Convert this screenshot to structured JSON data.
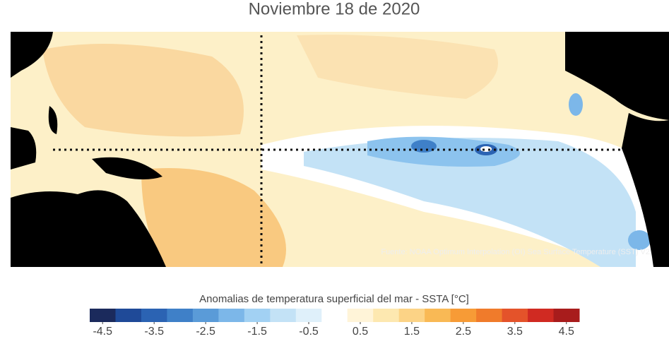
{
  "title": "Noviembre 18 de 2020",
  "source": "Fuente: NOAA Optimum Interpolation (OI) Sea Surface Temperature (SST) V2",
  "colorbar": {
    "label": "Anomalias de temperatura superficial del mar - SSTA  [°C]",
    "levels": [
      -4.5,
      -4,
      -3.5,
      -3,
      -2.5,
      -2,
      -1.5,
      -1,
      -0.5,
      0,
      0.5,
      1,
      1.5,
      2,
      2.5,
      3,
      3.5,
      4,
      4.5
    ],
    "colors": [
      "#1b2a5c",
      "#1f4a98",
      "#2b63b3",
      "#3f80c8",
      "#5a9bd8",
      "#7cb7e9",
      "#a2d1f3",
      "#c3e2f6",
      "#dff0fa",
      "#ffffff",
      "#fff4d8",
      "#fde8b0",
      "#fcd386",
      "#f9b955",
      "#f79b36",
      "#f07b2b",
      "#e4532a",
      "#d02a22",
      "#a81c1c"
    ],
    "ticks": [
      -4.5,
      -3.5,
      -2.5,
      -1.5,
      -0.5,
      0.5,
      1.5,
      2.5,
      3.5,
      4.5
    ]
  }
}
